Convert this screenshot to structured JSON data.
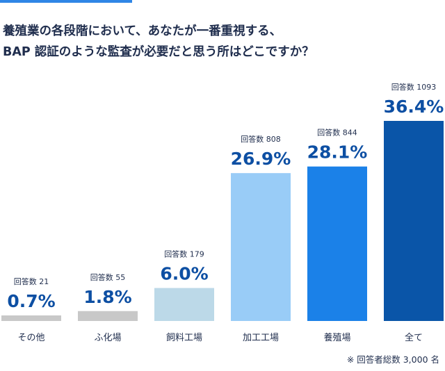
{
  "question": {
    "line1": "養殖業の各段階において、あなたが一番重視する、",
    "line2": "BAP 認証のような監査が必要だと思う所はどこですか？"
  },
  "footnote": "※ 回答者総数 3,000 名",
  "chart_data": {
    "type": "bar",
    "categories": [
      "その他",
      "ふ化場",
      "飼料工場",
      "加工工場",
      "養殖場",
      "全て"
    ],
    "values": [
      0.7,
      1.8,
      6.0,
      26.9,
      28.1,
      36.4
    ],
    "value_labels": [
      "0.7%",
      "1.8%",
      "6.0%",
      "26.9%",
      "28.1%",
      "36.4%"
    ],
    "count_labels": [
      "回答数 21",
      "回答数 55",
      "回答数 179",
      "回答数 808",
      "回答数 844",
      "回答数 1093"
    ],
    "colors": [
      "#c8c8c8",
      "#c8c8c8",
      "#bcd9e8",
      "#99ccf7",
      "#1b81e8",
      "#0a55a8"
    ],
    "ylim": [
      0,
      36.4
    ]
  }
}
